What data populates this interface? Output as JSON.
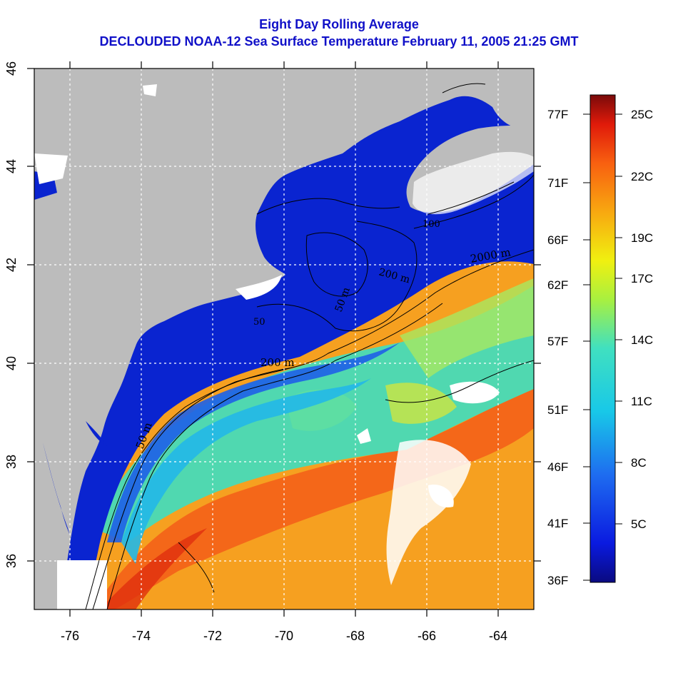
{
  "title_line1": "Eight Day Rolling Average",
  "title_line2": "DECLOUDED NOAA-12 Sea Surface Temperature February 11, 2005 21:25 GMT",
  "axes": {
    "lon_ticks": [
      "-76",
      "-74",
      "-72",
      "-70",
      "-68",
      "-66",
      "-64"
    ],
    "lat_ticks": [
      "36",
      "38",
      "40",
      "42",
      "44",
      "46"
    ]
  },
  "contours": {
    "depth_labels": [
      "50 m",
      "200 m",
      "2000 m",
      "50 m",
      "200 m",
      "100",
      "50"
    ]
  },
  "colorbar": {
    "fahrenheit": [
      "77F",
      "71F",
      "66F",
      "62F",
      "57F",
      "51F",
      "46F",
      "41F",
      "36F"
    ],
    "celsius": [
      "25C",
      "22C",
      "19C",
      "17C",
      "14C",
      "11C",
      "8C",
      "5C"
    ]
  },
  "colors": {
    "land": "#bcbcbc",
    "cloud": "#ffffff",
    "cold": "#0a1fc8",
    "title": "#1010c8"
  }
}
